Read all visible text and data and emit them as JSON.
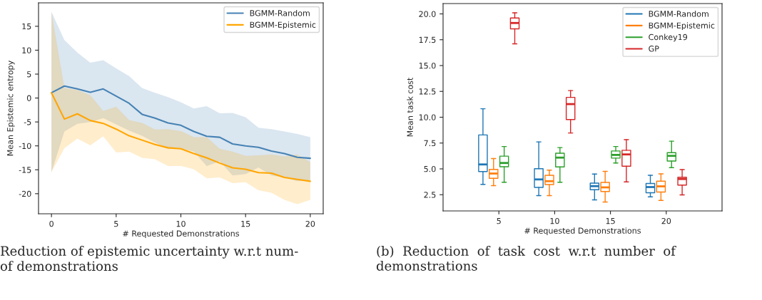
{
  "chart_data": [
    {
      "type": "line",
      "xlabel": "# Requested Demonstrations",
      "ylabel": "Mean Epistemic entropy",
      "x": [
        0,
        1,
        2,
        3,
        4,
        5,
        6,
        7,
        8,
        9,
        10,
        11,
        12,
        13,
        14,
        15,
        16,
        17,
        18,
        19,
        20
      ],
      "series": [
        {
          "name": "BGMM-Random",
          "color": "#4682b4",
          "values": [
            1.1,
            2.5,
            1.9,
            1.2,
            1.9,
            0.4,
            -1.1,
            -3.4,
            -4.2,
            -5.2,
            -5.7,
            -7.0,
            -8.0,
            -8.2,
            -9.6,
            -10.0,
            -10.3,
            -11.1,
            -11.6,
            -12.4,
            -12.6
          ],
          "upper": [
            18.0,
            12.1,
            9.5,
            7.4,
            7.9,
            6.2,
            4.6,
            2.1,
            1.1,
            0.2,
            -0.9,
            -2.2,
            -1.7,
            -3.2,
            -3.1,
            -4.0,
            -6.2,
            -6.5,
            -7.0,
            -7.5,
            -8.2
          ],
          "lower": [
            -15.5,
            -7.0,
            -5.4,
            -5.0,
            -4.2,
            -5.5,
            -6.8,
            -7.9,
            -9.3,
            -10.6,
            -10.5,
            -11.2,
            -14.2,
            -13.2,
            -16.2,
            -15.9,
            -14.5,
            -16.2,
            -16.6,
            -17.4,
            -17.2
          ]
        },
        {
          "name": "BGMM-Epistemic",
          "color": "#ffa500",
          "values": [
            1.1,
            -4.4,
            -3.3,
            -4.7,
            -5.3,
            -6.5,
            -7.9,
            -8.8,
            -9.7,
            -10.4,
            -10.6,
            -11.6,
            -12.5,
            -13.6,
            -14.6,
            -14.9,
            -15.6,
            -15.7,
            -16.6,
            -17.0,
            -17.4
          ],
          "upper": [
            18.0,
            2.1,
            1.7,
            0.6,
            -2.7,
            -1.8,
            -4.6,
            -5.2,
            -6.6,
            -6.5,
            -6.9,
            -8.2,
            -8.2,
            -10.6,
            -11.2,
            -12.1,
            -12.0,
            -11.8,
            -12.2,
            -11.8,
            -13.4
          ],
          "lower": [
            -15.5,
            -10.5,
            -8.5,
            -9.9,
            -8.0,
            -11.4,
            -11.2,
            -12.5,
            -12.8,
            -14.2,
            -14.2,
            -14.9,
            -16.8,
            -16.6,
            -17.8,
            -17.6,
            -19.3,
            -19.8,
            -21.3,
            -22.2,
            -21.3
          ]
        }
      ],
      "xlim": [
        -1,
        21
      ],
      "ylim": [
        -24.2,
        19.9
      ],
      "xticks": [
        0,
        5,
        10,
        15,
        20
      ],
      "yticks": [
        -20,
        -15,
        -10,
        -5,
        0,
        5,
        10,
        15
      ],
      "legend": "top right",
      "grid": false,
      "marker": "none",
      "line_style": "solid",
      "annotations": [
        "Reduction of epistemic uncertainty w.r.t num-\nof demonstrations"
      ]
    },
    {
      "type": "box",
      "xlabel": "# Requested Demonstrations",
      "ylabel": "Mean task cost",
      "categories": [
        "5",
        "10",
        "15",
        "20"
      ],
      "series": [
        {
          "name": "BGMM-Random",
          "color": "#1f77b4",
          "boxes": [
            {
              "low": 3.5,
              "q1": 4.74,
              "median": 5.43,
              "q3": 8.28,
              "high": 10.82
            },
            {
              "low": 2.41,
              "q1": 3.21,
              "median": 3.98,
              "q3": 5.02,
              "high": 7.61
            },
            {
              "low": 2.0,
              "q1": 2.98,
              "median": 3.33,
              "q3": 3.62,
              "high": 4.5
            },
            {
              "low": 2.29,
              "q1": 2.69,
              "median": 3.24,
              "q3": 3.59,
              "high": 4.38
            }
          ]
        },
        {
          "name": "BGMM-Epistemic",
          "color": "#ff7f0e",
          "boxes": [
            {
              "low": 3.38,
              "q1": 4.09,
              "median": 4.55,
              "q3": 4.95,
              "high": 6.0
            },
            {
              "low": 2.41,
              "q1": 3.48,
              "median": 3.81,
              "q3": 4.38,
              "high": 4.88
            },
            {
              "low": 1.79,
              "q1": 2.81,
              "median": 3.21,
              "q3": 3.69,
              "high": 4.76
            },
            {
              "low": 1.95,
              "q1": 2.76,
              "median": 3.31,
              "q3": 3.81,
              "high": 4.52
            }
          ]
        },
        {
          "name": "Conkey19",
          "color": "#2ca02c",
          "boxes": [
            {
              "low": 3.71,
              "q1": 5.21,
              "median": 5.57,
              "q3": 6.23,
              "high": 7.16
            },
            {
              "low": 3.71,
              "q1": 5.19,
              "median": 6.09,
              "q3": 6.52,
              "high": 7.06
            },
            {
              "low": 5.57,
              "q1": 6.04,
              "median": 6.35,
              "q3": 6.73,
              "high": 7.16
            },
            {
              "low": 5.12,
              "q1": 5.76,
              "median": 6.26,
              "q3": 6.57,
              "high": 7.68
            }
          ]
        },
        {
          "name": "GP",
          "color": "#d62728",
          "boxes": [
            {
              "low": 17.1,
              "q1": 18.55,
              "median": 19.12,
              "q3": 19.6,
              "high": 20.1
            },
            {
              "low": 8.47,
              "q1": 9.78,
              "median": 11.27,
              "q3": 11.92,
              "high": 12.58
            },
            {
              "low": 3.74,
              "q1": 5.26,
              "median": 6.4,
              "q3": 6.8,
              "high": 7.83
            },
            {
              "low": 2.48,
              "q1": 3.43,
              "median": 4.02,
              "q3": 4.19,
              "high": 4.93
            }
          ]
        }
      ],
      "ylim": [
        0.93,
        21.0
      ],
      "yticks": [
        {
          "value": 2.5,
          "label": "2.5"
        },
        {
          "value": 5,
          "label": "5.0"
        },
        {
          "value": 7.5,
          "label": "7.5"
        },
        {
          "value": 10,
          "label": "10.0"
        },
        {
          "value": 12.5,
          "label": "12.5"
        },
        {
          "value": 15,
          "label": "15.0"
        },
        {
          "value": 17.5,
          "label": "17.5"
        },
        {
          "value": 20,
          "label": "20.0"
        }
      ],
      "legend": "top right",
      "grid": false,
      "annotations": [
        "(b)  Reduction  of  task  cost  w.r.t  number  of\ndemonstrations"
      ]
    }
  ]
}
